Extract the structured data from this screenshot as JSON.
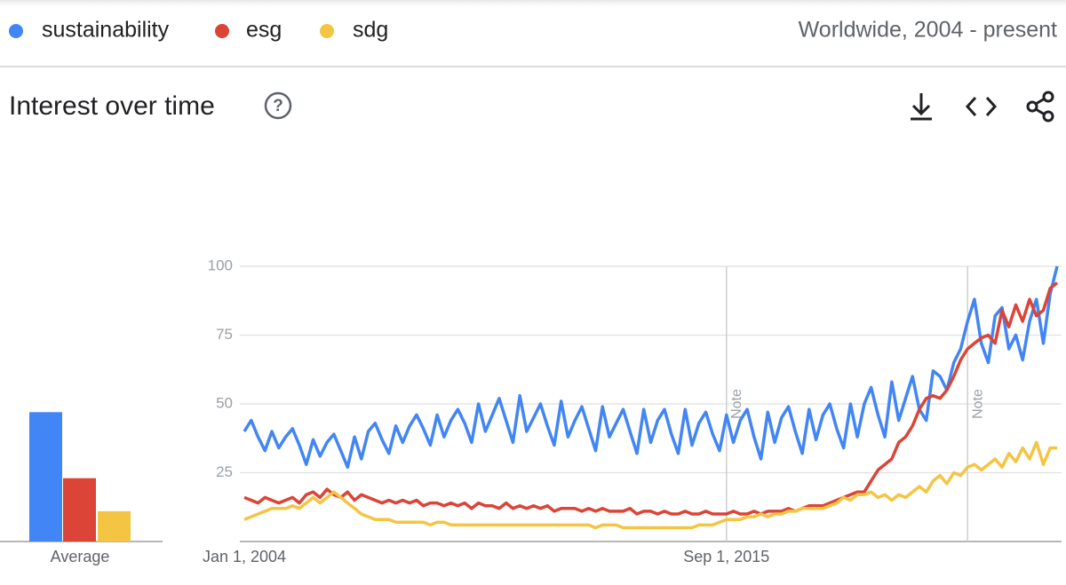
{
  "chart_data": {
    "type": "line",
    "title": "Interest over time",
    "region": "Worldwide, 2004 - present",
    "categories": [
      "Jan 1, 2004",
      null,
      null,
      null,
      null,
      null,
      null,
      null,
      null,
      null,
      null,
      null,
      null,
      null,
      null,
      null,
      null,
      null,
      null,
      null,
      null,
      null,
      null,
      null,
      null,
      null,
      null,
      null,
      null,
      null,
      null,
      null,
      null,
      null,
      null,
      null,
      null,
      null,
      null,
      null,
      null,
      null,
      null,
      null,
      null,
      null,
      null,
      null,
      null,
      null,
      null,
      null,
      null,
      null,
      null,
      null,
      null,
      null,
      null,
      null,
      null,
      null,
      null,
      null,
      null,
      null,
      null,
      null,
      null,
      null,
      "Sep 1, 2015",
      null,
      null,
      null,
      null,
      null,
      null,
      null,
      null,
      null,
      null,
      null,
      null,
      null,
      null,
      null,
      null,
      null,
      null,
      null,
      null,
      null,
      null,
      null,
      null,
      null,
      null,
      null,
      null,
      null,
      null,
      null,
      null,
      null,
      null,
      null,
      null,
      null,
      null,
      null,
      null,
      null,
      null,
      null,
      null,
      null,
      null,
      null,
      null
    ],
    "series": [
      {
        "name": "sustainability",
        "color": "#4285f4",
        "values": [
          40,
          44,
          38,
          33,
          40,
          34,
          38,
          41,
          35,
          28,
          37,
          31,
          36,
          39,
          33,
          27,
          38,
          30,
          40,
          43,
          37,
          32,
          42,
          36,
          42,
          46,
          41,
          35,
          46,
          38,
          44,
          48,
          43,
          36,
          50,
          40,
          46,
          52,
          44,
          36,
          53,
          40,
          45,
          50,
          42,
          35,
          51,
          38,
          44,
          49,
          41,
          33,
          49,
          38,
          43,
          48,
          40,
          32,
          48,
          36,
          44,
          48,
          39,
          32,
          48,
          35,
          43,
          47,
          39,
          33,
          46,
          36,
          44,
          48,
          38,
          30,
          47,
          36,
          45,
          49,
          40,
          32,
          48,
          37,
          46,
          50,
          41,
          34,
          50,
          38,
          50,
          56,
          46,
          38,
          58,
          44,
          52,
          60,
          48,
          44,
          62,
          60,
          55,
          65,
          70,
          80,
          88,
          72,
          65,
          82,
          85,
          70,
          75,
          66,
          80,
          88,
          72,
          90,
          100
        ]
      },
      {
        "name": "esg",
        "color": "#db4437",
        "values": [
          16,
          15,
          14,
          16,
          15,
          14,
          15,
          16,
          14,
          17,
          18,
          16,
          19,
          17,
          16,
          18,
          15,
          17,
          16,
          15,
          14,
          15,
          14,
          15,
          14,
          15,
          13,
          14,
          14,
          13,
          14,
          13,
          14,
          12,
          14,
          13,
          13,
          12,
          14,
          12,
          13,
          12,
          13,
          12,
          13,
          11,
          12,
          12,
          12,
          11,
          12,
          11,
          12,
          11,
          11,
          11,
          12,
          10,
          11,
          11,
          10,
          11,
          10,
          10,
          11,
          10,
          10,
          11,
          10,
          10,
          10,
          11,
          10,
          10,
          11,
          10,
          11,
          11,
          11,
          12,
          11,
          12,
          13,
          13,
          13,
          14,
          15,
          16,
          17,
          18,
          18,
          22,
          26,
          28,
          30,
          36,
          38,
          42,
          48,
          52,
          53,
          52,
          55,
          60,
          66,
          70,
          72,
          74,
          75,
          72,
          84,
          78,
          86,
          80,
          88,
          82,
          84,
          92,
          94
        ]
      },
      {
        "name": "sdg",
        "color": "#f4c542",
        "values": [
          8,
          9,
          10,
          11,
          12,
          12,
          12,
          13,
          12,
          14,
          16,
          14,
          16,
          18,
          16,
          14,
          12,
          10,
          9,
          8,
          8,
          8,
          7,
          7,
          7,
          7,
          7,
          6,
          7,
          7,
          6,
          6,
          6,
          6,
          6,
          6,
          6,
          6,
          6,
          6,
          6,
          6,
          6,
          6,
          6,
          6,
          6,
          6,
          6,
          6,
          6,
          5,
          6,
          6,
          6,
          5,
          5,
          5,
          5,
          5,
          5,
          5,
          5,
          5,
          5,
          5,
          6,
          6,
          6,
          7,
          8,
          8,
          8,
          9,
          9,
          10,
          9,
          10,
          10,
          11,
          11,
          12,
          12,
          12,
          12,
          13,
          14,
          16,
          15,
          17,
          17,
          18,
          16,
          17,
          15,
          17,
          16,
          18,
          20,
          18,
          22,
          24,
          21,
          25,
          24,
          27,
          28,
          26,
          28,
          30,
          27,
          32,
          29,
          34,
          30,
          36,
          28,
          34,
          34
        ]
      }
    ],
    "ylim": [
      0,
      100
    ],
    "yticks": [
      25,
      50,
      75,
      100
    ],
    "grid": true,
    "annotations": [
      {
        "label": "Note",
        "index": 70
      },
      {
        "label": "Note",
        "index": 105
      }
    ],
    "average_label": "Average",
    "average_values": [
      47,
      23,
      11
    ]
  }
}
